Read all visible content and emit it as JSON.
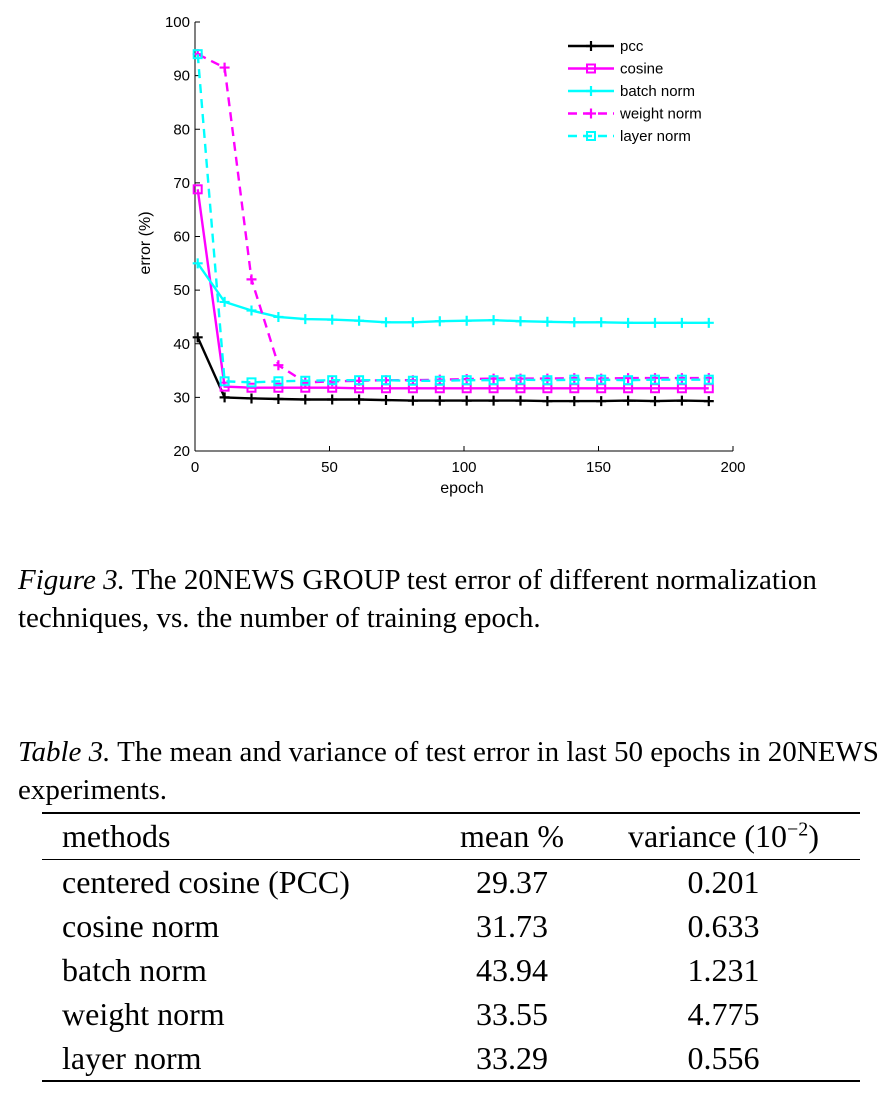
{
  "chart_data": {
    "type": "line",
    "xlabel": "epoch",
    "ylabel": "error (%)",
    "xlim": [
      0,
      200
    ],
    "ylim": [
      20,
      100
    ],
    "xticks": [
      0,
      50,
      100,
      150,
      200
    ],
    "yticks": [
      20,
      30,
      40,
      50,
      60,
      70,
      80,
      90,
      100
    ],
    "grid": false,
    "legend_position": "top-right",
    "x": [
      1,
      11,
      21,
      31,
      41,
      51,
      61,
      71,
      81,
      91,
      101,
      111,
      121,
      131,
      141,
      151,
      161,
      171,
      181,
      191
    ],
    "series": [
      {
        "name": "pcc",
        "color": "#000000",
        "dash": "solid",
        "marker": "plus",
        "values": [
          41.2,
          30.0,
          29.8,
          29.7,
          29.6,
          29.6,
          29.6,
          29.5,
          29.4,
          29.4,
          29.4,
          29.4,
          29.4,
          29.3,
          29.3,
          29.3,
          29.4,
          29.3,
          29.4,
          29.3
        ]
      },
      {
        "name": "cosine",
        "color": "#ff00ff",
        "dash": "solid",
        "marker": "square",
        "values": [
          68.8,
          32.0,
          31.8,
          31.8,
          31.8,
          31.8,
          31.7,
          31.7,
          31.7,
          31.7,
          31.7,
          31.7,
          31.7,
          31.7,
          31.7,
          31.7,
          31.7,
          31.7,
          31.7,
          31.7
        ]
      },
      {
        "name": "batch norm",
        "color": "#00ffff",
        "dash": "solid",
        "marker": "plus",
        "values": [
          55.0,
          47.8,
          46.2,
          45.0,
          44.6,
          44.5,
          44.3,
          44.0,
          44.0,
          44.2,
          44.3,
          44.4,
          44.2,
          44.1,
          44.0,
          44.0,
          43.9,
          43.9,
          43.9,
          43.9
        ]
      },
      {
        "name": "weight norm",
        "color": "#ff00ff",
        "dash": "dashed",
        "marker": "plus",
        "values": [
          94.0,
          91.5,
          52.0,
          36.0,
          32.8,
          33.0,
          33.1,
          33.2,
          33.2,
          33.3,
          33.4,
          33.5,
          33.5,
          33.5,
          33.6,
          33.5,
          33.6,
          33.6,
          33.6,
          33.6
        ]
      },
      {
        "name": "layer norm",
        "color": "#00ffff",
        "dash": "dashed",
        "marker": "square",
        "values": [
          94.0,
          33.0,
          32.8,
          33.0,
          33.1,
          33.2,
          33.2,
          33.2,
          33.1,
          33.1,
          33.2,
          33.2,
          33.3,
          33.2,
          33.3,
          33.3,
          33.2,
          33.3,
          33.3,
          33.3
        ]
      }
    ]
  },
  "figure_caption": {
    "label": "Figure 3.",
    "text": " The 20NEWS GROUP test error of different normalization techniques, vs. the number of training epoch."
  },
  "table_caption": {
    "label": "Table 3.",
    "text": "  The mean and variance of test error in last 50 epochs in 20NEWS experiments."
  },
  "table": {
    "headers": {
      "method": "methods",
      "mean": "mean %",
      "variance": "variance (10",
      "variance_exp": "−2",
      "variance_close": ")"
    },
    "rows": [
      {
        "method": "centered cosine (PCC)",
        "mean": "29.37",
        "variance": "0.201"
      },
      {
        "method": "cosine norm",
        "mean": "31.73",
        "variance": "0.633"
      },
      {
        "method": "batch norm",
        "mean": "43.94",
        "variance": "1.231"
      },
      {
        "method": "weight norm",
        "mean": "33.55",
        "variance": "4.775"
      },
      {
        "method": "layer norm",
        "mean": "33.29",
        "variance": "0.556"
      }
    ]
  }
}
